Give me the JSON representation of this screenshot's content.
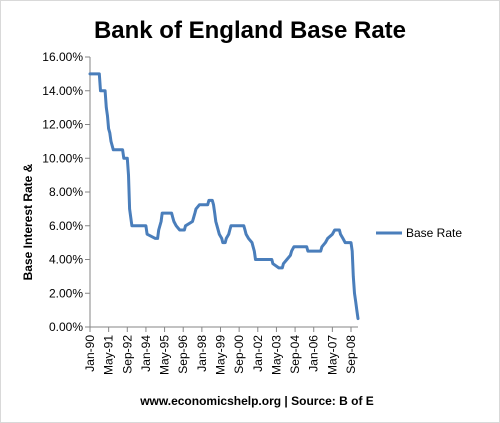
{
  "chart_data": {
    "type": "line",
    "title": "Bank of England Base Rate",
    "ylabel": "Base Interest Rate &",
    "xlabel": "",
    "ylim": [
      0,
      16
    ],
    "yticks": [
      "0.00%",
      "2.00%",
      "4.00%",
      "6.00%",
      "8.00%",
      "10.00%",
      "12.00%",
      "14.00%",
      "16.00%"
    ],
    "xticks": [
      "Jan-90",
      "May-91",
      "Sep-92",
      "Jan-94",
      "May-95",
      "Sep-96",
      "Jan-98",
      "May-99",
      "Sep-00",
      "Jan-02",
      "May-03",
      "Sep-04",
      "Jan-06",
      "May-07",
      "Sep-08"
    ],
    "grid": false,
    "legend_position": "right",
    "series": [
      {
        "name": "Base Rate",
        "color": "#4a7ebb",
        "points": [
          [
            "Jan-90",
            15.0
          ],
          [
            "Sep-90",
            15.0
          ],
          [
            "Oct-90",
            14.0
          ],
          [
            "Feb-91",
            14.0
          ],
          [
            "Mar-91",
            13.0
          ],
          [
            "Apr-91",
            12.5
          ],
          [
            "May-91",
            11.75
          ],
          [
            "Jun-91",
            11.5
          ],
          [
            "Jul-91",
            11.0
          ],
          [
            "Sep-91",
            10.5
          ],
          [
            "May-92",
            10.5
          ],
          [
            "Jun-92",
            10.0
          ],
          [
            "Sep-92",
            10.0
          ],
          [
            "Oct-92",
            9.0
          ],
          [
            "Nov-92",
            7.0
          ],
          [
            "Jan-93",
            6.0
          ],
          [
            "Jan-94",
            6.0
          ],
          [
            "Feb-94",
            5.5
          ],
          [
            "Sep-94",
            5.25
          ],
          [
            "Nov-94",
            5.25
          ],
          [
            "Dec-94",
            5.75
          ],
          [
            "Feb-95",
            6.25
          ],
          [
            "Mar-95",
            6.75
          ],
          [
            "Nov-95",
            6.75
          ],
          [
            "Dec-95",
            6.5
          ],
          [
            "Jan-96",
            6.25
          ],
          [
            "Mar-96",
            6.0
          ],
          [
            "Jun-96",
            5.75
          ],
          [
            "Oct-96",
            5.75
          ],
          [
            "Nov-96",
            6.0
          ],
          [
            "May-97",
            6.25
          ],
          [
            "Jun-97",
            6.5
          ],
          [
            "Jul-97",
            6.75
          ],
          [
            "Aug-97",
            7.0
          ],
          [
            "Nov-97",
            7.25
          ],
          [
            "Jun-98",
            7.25
          ],
          [
            "Jul-98",
            7.5
          ],
          [
            "Oct-98",
            7.5
          ],
          [
            "Nov-98",
            7.25
          ],
          [
            "Dec-98",
            6.75
          ],
          [
            "Jan-99",
            6.25
          ],
          [
            "Feb-99",
            6.0
          ],
          [
            "Apr-99",
            5.5
          ],
          [
            "Jun-99",
            5.25
          ],
          [
            "Jul-99",
            5.0
          ],
          [
            "Sep-99",
            5.0
          ],
          [
            "Oct-99",
            5.25
          ],
          [
            "Dec-99",
            5.5
          ],
          [
            "Jan-00",
            5.75
          ],
          [
            "Feb-00",
            6.0
          ],
          [
            "Jan-01",
            6.0
          ],
          [
            "Feb-01",
            5.75
          ],
          [
            "Mar-01",
            5.5
          ],
          [
            "May-01",
            5.25
          ],
          [
            "Aug-01",
            5.0
          ],
          [
            "Sep-01",
            4.75
          ],
          [
            "Oct-01",
            4.5
          ],
          [
            "Nov-01",
            4.0
          ],
          [
            "Jan-03",
            4.0
          ],
          [
            "Feb-03",
            3.75
          ],
          [
            "Jul-03",
            3.5
          ],
          [
            "Oct-03",
            3.5
          ],
          [
            "Nov-03",
            3.75
          ],
          [
            "Feb-04",
            4.0
          ],
          [
            "May-04",
            4.25
          ],
          [
            "Jun-04",
            4.5
          ],
          [
            "Aug-04",
            4.75
          ],
          [
            "Jul-05",
            4.75
          ],
          [
            "Aug-05",
            4.5
          ],
          [
            "Jul-06",
            4.5
          ],
          [
            "Aug-06",
            4.75
          ],
          [
            "Nov-06",
            5.0
          ],
          [
            "Jan-07",
            5.25
          ],
          [
            "May-07",
            5.5
          ],
          [
            "Jul-07",
            5.75
          ],
          [
            "Nov-07",
            5.75
          ],
          [
            "Dec-07",
            5.5
          ],
          [
            "Feb-08",
            5.25
          ],
          [
            "Apr-08",
            5.0
          ],
          [
            "Sep-08",
            5.0
          ],
          [
            "Oct-08",
            4.5
          ],
          [
            "Nov-08",
            3.0
          ],
          [
            "Dec-08",
            2.0
          ],
          [
            "Jan-09",
            1.5
          ],
          [
            "Feb-09",
            1.0
          ],
          [
            "Mar-09",
            0.5
          ]
        ]
      }
    ],
    "source_note": "www.economicshelp.org | Source: B of E"
  }
}
